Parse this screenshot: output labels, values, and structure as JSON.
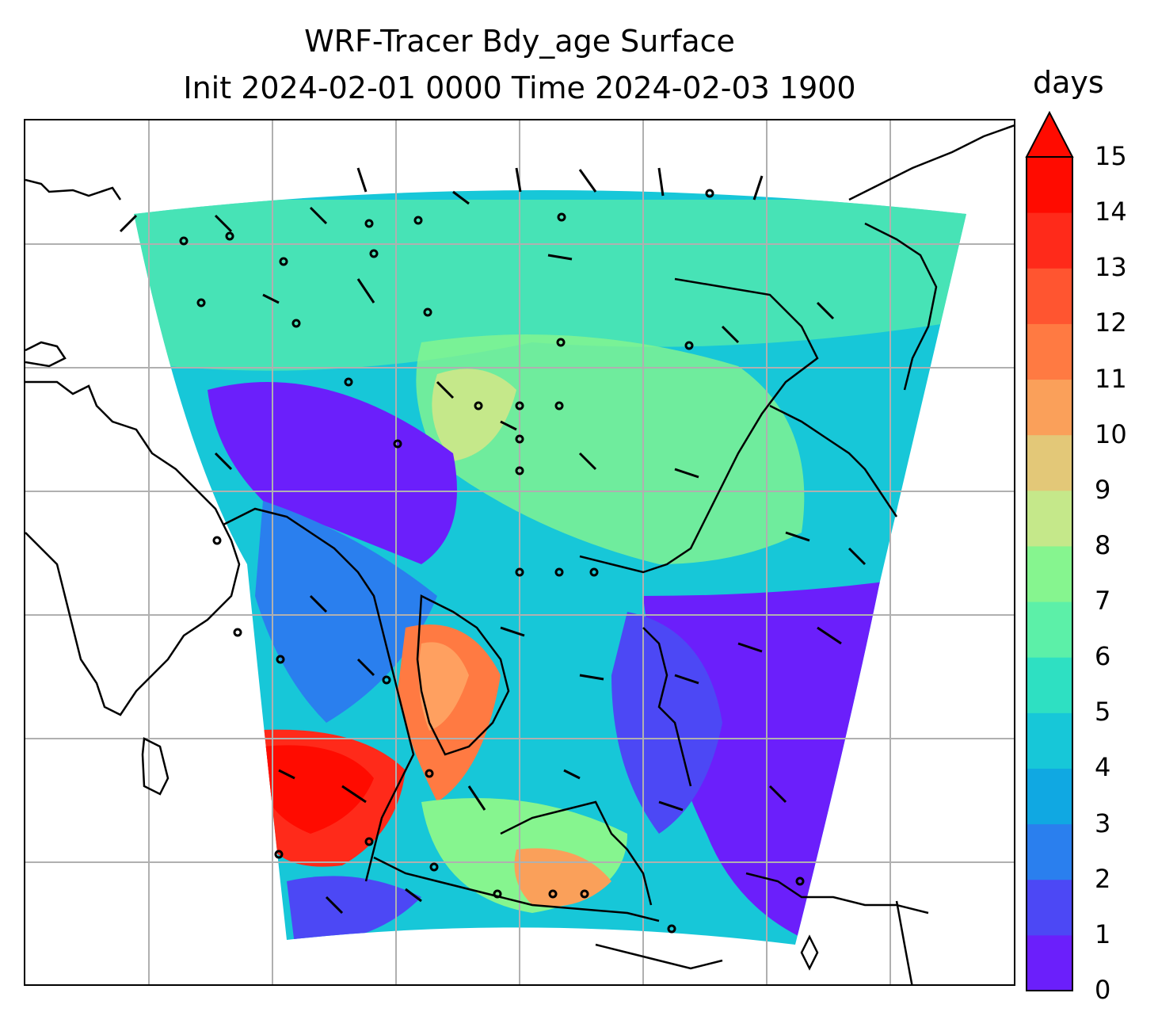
{
  "title": {
    "line1": "WRF-Tracer Bdy_age Surface",
    "line2": "Init 2024-02-01 0000 Time 2024-02-03 1900"
  },
  "colorbar": {
    "label": "days",
    "ticks": [
      "0",
      "1",
      "2",
      "3",
      "4",
      "5",
      "6",
      "7",
      "8",
      "9",
      "10",
      "11",
      "12",
      "13",
      "14",
      "15"
    ],
    "colors": [
      "#6b1ffb",
      "#4c48f5",
      "#2a7fee",
      "#10a8e2",
      "#17c7d8",
      "#2ee0c2",
      "#5cf0a8",
      "#86f58f",
      "#c5e88a",
      "#e3c878",
      "#faa05a",
      "#ff7a42",
      "#ff5530",
      "#ff2a1a",
      "#ff0b00"
    ],
    "extend": "max"
  },
  "map": {
    "domain": "WRF domain over East and Southeast Asia",
    "field": "Boundary air age at surface with wind barbs",
    "gridlines": true
  }
}
